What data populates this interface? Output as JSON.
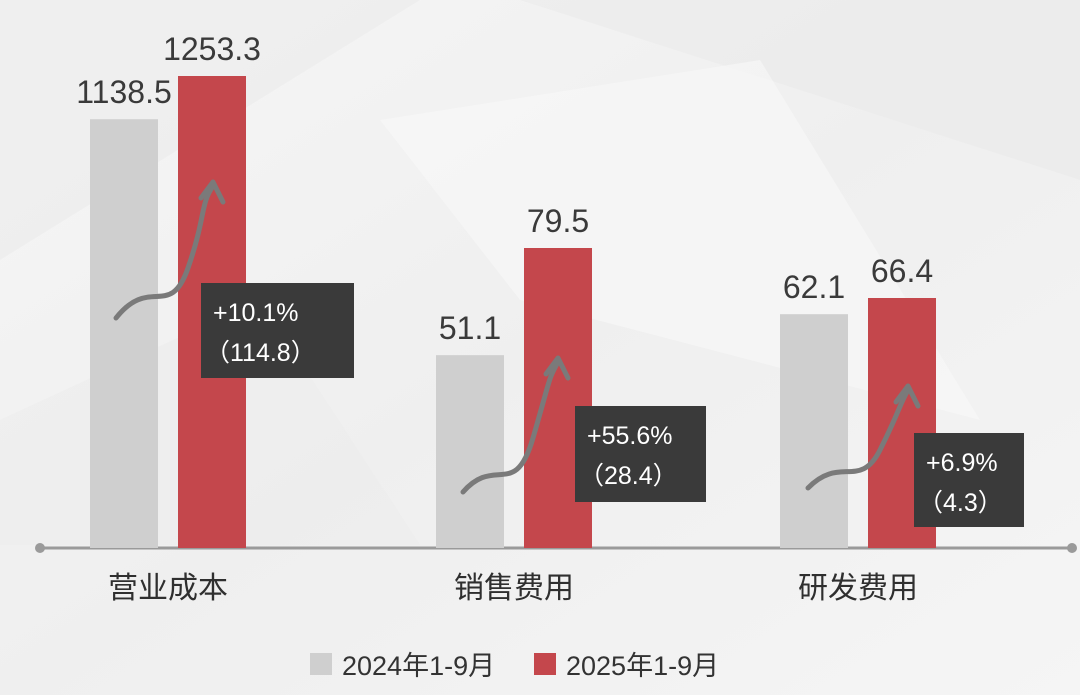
{
  "chart_data": {
    "type": "bar",
    "categories": [
      "营业成本",
      "销售费用",
      "研发费用"
    ],
    "series": [
      {
        "name": "2024年1-9月",
        "color": "#cfcfcf",
        "values": [
          1138.5,
          51.1,
          62.1
        ],
        "labels": [
          "1138.5",
          "51.1",
          "62.1"
        ]
      },
      {
        "name": "2025年1-9月",
        "color": "#c4474c",
        "values": [
          1253.3,
          79.5,
          66.4
        ],
        "labels": [
          "1253.3",
          "79.5",
          "66.4"
        ]
      }
    ],
    "annotations": [
      {
        "category": "营业成本",
        "pct": "+10.1%",
        "diff": "（114.8）"
      },
      {
        "category": "销售费用",
        "pct": "+55.6%",
        "diff": "（28.4）"
      },
      {
        "category": "研发费用",
        "pct": "+6.9%",
        "diff": "（4.3）"
      }
    ],
    "axis_note": "each category group is drawn on its own scale; no numeric y axis shown",
    "grid": false,
    "legend_position": "bottom-center",
    "colors": {
      "callout_bg": "#3a3a3a",
      "arrow": "#7a7a7a",
      "axis": "#9a9a9a"
    }
  }
}
